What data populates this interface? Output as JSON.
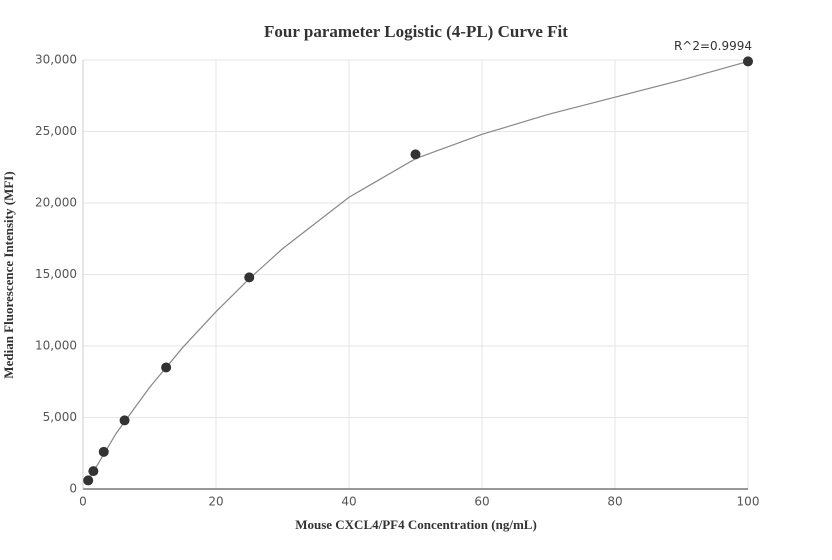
{
  "chart_data": {
    "type": "scatter",
    "title": "Four parameter Logistic (4-PL) Curve Fit",
    "x_label": "Mouse CXCL4/PF4 Concentration (ng/mL)",
    "y_label": "Median Fluorescence Intensity (MFI)",
    "annotation": "R^2=0.9994",
    "x": [
      0.78,
      1.56,
      3.125,
      6.25,
      12.5,
      25,
      50,
      100
    ],
    "values": [
      600,
      1250,
      2600,
      4800,
      8500,
      14800,
      23400,
      29900
    ],
    "color": "#333333",
    "curve": {
      "x": [
        0.78,
        5,
        10,
        15,
        20,
        25,
        30,
        40,
        50,
        60,
        70,
        80,
        90,
        100
      ],
      "values": [
        600,
        3900,
        7100,
        9900,
        12400,
        14700,
        16800,
        20400,
        23100,
        24800,
        26200,
        27400,
        28600,
        29900
      ],
      "color": "#888888"
    },
    "xlim": [
      0,
      100
    ],
    "xticks": [
      0,
      20,
      40,
      60,
      80,
      100
    ],
    "ylim": [
      0,
      30000
    ],
    "yticks": [
      0,
      {
        "value": 5000,
        "label": "5,000"
      },
      {
        "value": 10000,
        "label": "10,000"
      },
      {
        "value": 15000,
        "label": "15,000"
      },
      {
        "value": 20000,
        "label": "20,000"
      },
      {
        "value": 25000,
        "label": "25,000"
      },
      {
        "value": 30000,
        "label": "30,000"
      }
    ],
    "grid": true
  }
}
